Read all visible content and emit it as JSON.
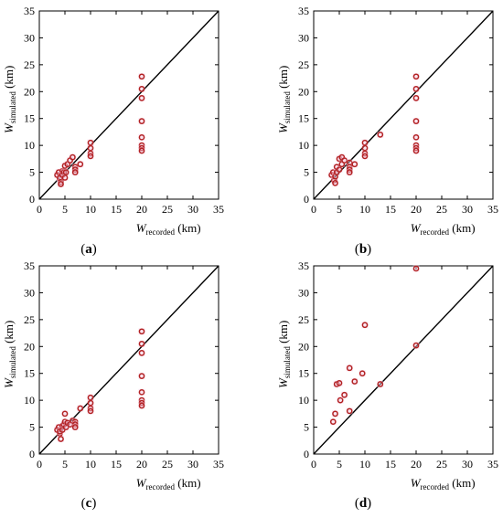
{
  "chart_data": [
    {
      "type": "scatter",
      "panel_label": "(a)",
      "xlabel": {
        "main": "W",
        "sub": "recorded",
        "unit": "(km)"
      },
      "ylabel": {
        "main": "W",
        "sub": "simulated",
        "unit": "(km)"
      },
      "xlim": [
        0,
        35
      ],
      "ylim": [
        0,
        35
      ],
      "xticks": [
        "0",
        "5",
        "10",
        "15",
        "20",
        "25",
        "30",
        "35"
      ],
      "yticks": [
        "0",
        "5",
        "10",
        "15",
        "20",
        "25",
        "30",
        "35"
      ],
      "reference_line": "y = x",
      "grid": false,
      "x": [
        3.5,
        3.8,
        4.0,
        4.0,
        4.2,
        4.2,
        4.5,
        4.5,
        4.8,
        5.0,
        5.0,
        5.2,
        5.5,
        6.0,
        6.5,
        7.0,
        7.0,
        7.0,
        8.0,
        10.0,
        10.0,
        10.0,
        10.0,
        20.0,
        20.0,
        20.0,
        20.0,
        20.0,
        20.0,
        20.0,
        20.0
      ],
      "y": [
        4.5,
        5.0,
        3.8,
        4.0,
        3.2,
        2.8,
        5.2,
        4.5,
        5.0,
        4.0,
        6.2,
        5.0,
        6.5,
        7.2,
        7.8,
        6.0,
        5.5,
        5.0,
        6.5,
        10.5,
        9.5,
        8.5,
        8.0,
        22.8,
        20.5,
        18.8,
        14.5,
        11.5,
        10.0,
        9.5,
        9.0
      ]
    },
    {
      "type": "scatter",
      "panel_label": "(b)",
      "xlabel": {
        "main": "W",
        "sub": "recorded",
        "unit": "(km)"
      },
      "ylabel": {
        "main": "W",
        "sub": "simulated",
        "unit": "(km)"
      },
      "xlim": [
        0,
        35
      ],
      "ylim": [
        0,
        35
      ],
      "xticks": [
        "0",
        "5",
        "10",
        "15",
        "20",
        "25",
        "30",
        "35"
      ],
      "yticks": [
        "0",
        "5",
        "10",
        "15",
        "20",
        "25",
        "30",
        "35"
      ],
      "reference_line": "y = x",
      "grid": false,
      "x": [
        3.5,
        3.8,
        4.0,
        4.2,
        4.2,
        4.5,
        4.5,
        5.0,
        5.0,
        5.5,
        5.5,
        6.0,
        7.0,
        7.0,
        7.0,
        7.0,
        8.0,
        10.0,
        10.0,
        10.0,
        10.0,
        13.0,
        20.0,
        20.0,
        20.0,
        20.0,
        20.0,
        20.0,
        20.0,
        20.0
      ],
      "y": [
        4.5,
        5.0,
        3.5,
        3.0,
        4.2,
        5.0,
        6.0,
        5.5,
        7.5,
        6.5,
        7.8,
        7.2,
        6.8,
        6.0,
        5.5,
        5.0,
        6.5,
        10.5,
        9.5,
        8.5,
        8.0,
        12.0,
        22.8,
        20.5,
        18.8,
        14.5,
        11.5,
        10.0,
        9.5,
        9.0
      ]
    },
    {
      "type": "scatter",
      "panel_label": "(c)",
      "xlabel": {
        "main": "W",
        "sub": "recorded",
        "unit": "(km)"
      },
      "ylabel": {
        "main": "W",
        "sub": "simulated",
        "unit": "(km)"
      },
      "xlim": [
        0,
        35
      ],
      "ylim": [
        0,
        35
      ],
      "xticks": [
        "0",
        "5",
        "10",
        "15",
        "20",
        "25",
        "30",
        "35"
      ],
      "yticks": [
        "0",
        "5",
        "10",
        "15",
        "20",
        "25",
        "30",
        "35"
      ],
      "reference_line": "y = x",
      "grid": false,
      "x": [
        3.5,
        3.8,
        4.0,
        4.0,
        4.2,
        4.5,
        4.5,
        4.8,
        5.0,
        5.0,
        5.2,
        5.5,
        6.0,
        6.5,
        7.0,
        7.0,
        7.0,
        8.0,
        10.0,
        10.0,
        10.0,
        10.0,
        20.0,
        20.0,
        20.0,
        20.0,
        20.0,
        20.0,
        20.0,
        20.0
      ],
      "y": [
        4.5,
        5.0,
        3.8,
        4.2,
        2.8,
        5.2,
        4.5,
        5.5,
        7.5,
        6.0,
        5.0,
        5.8,
        5.5,
        6.2,
        6.0,
        5.5,
        5.0,
        8.5,
        10.5,
        9.5,
        8.5,
        8.0,
        22.8,
        20.5,
        18.8,
        14.5,
        11.5,
        10.0,
        9.5,
        9.0
      ]
    },
    {
      "type": "scatter",
      "panel_label": "(d)",
      "xlabel": {
        "main": "W",
        "sub": "recorded",
        "unit": "(km)"
      },
      "ylabel": {
        "main": "W",
        "sub": "simulated",
        "unit": "(km)"
      },
      "xlim": [
        0,
        35
      ],
      "ylim": [
        0,
        35
      ],
      "xticks": [
        "0",
        "5",
        "10",
        "15",
        "20",
        "25",
        "30",
        "35"
      ],
      "yticks": [
        "0",
        "5",
        "10",
        "15",
        "20",
        "25",
        "30",
        "35"
      ],
      "reference_line": "y = x",
      "grid": false,
      "x": [
        3.8,
        4.2,
        4.5,
        5.0,
        5.2,
        6.0,
        7.0,
        7.0,
        8.0,
        9.5,
        10.0,
        13.0,
        20.0,
        20.0
      ],
      "y": [
        6.0,
        7.5,
        13.0,
        13.2,
        10.0,
        11.0,
        8.0,
        16.0,
        13.5,
        15.0,
        24.0,
        13.0,
        34.5,
        20.2
      ]
    }
  ],
  "colors": {
    "marker_stroke": "#b22222",
    "marker_fill": "#8b6a2a",
    "highlight": "#f6c6df",
    "axis": "#000000",
    "reference_line": "#000000"
  }
}
